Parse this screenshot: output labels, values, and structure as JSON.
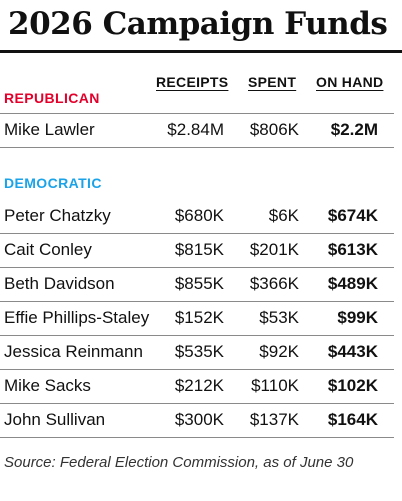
{
  "title": "2026 Campaign Funds",
  "columns": {
    "receipts": "RECEIPTS",
    "spent": "SPENT",
    "on_hand": "ON HAND"
  },
  "colors": {
    "republican": "#e4002b",
    "democratic": "#1aa3e8"
  },
  "republican": {
    "label": "REPUBLICAN",
    "rows": [
      {
        "name": "Mike Lawler",
        "receipts": "$2.84M",
        "spent": "$806K",
        "on_hand": "$2.2M"
      }
    ]
  },
  "democratic": {
    "label": "DEMOCRATIC",
    "rows": [
      {
        "name": "Peter Chatzky",
        "receipts": "$680K",
        "spent": "$6K",
        "on_hand": "$674K"
      },
      {
        "name": "Cait Conley",
        "receipts": "$815K",
        "spent": "$201K",
        "on_hand": "$613K"
      },
      {
        "name": "Beth Davidson",
        "receipts": "$855K",
        "spent": "$366K",
        "on_hand": "$489K"
      },
      {
        "name": "Effie Phillips-Staley",
        "receipts": "$152K",
        "spent": "$53K",
        "on_hand": "$99K"
      },
      {
        "name": "Jessica Reinmann",
        "receipts": "$535K",
        "spent": "$92K",
        "on_hand": "$443K"
      },
      {
        "name": "Mike Sacks",
        "receipts": "$212K",
        "spent": "$110K",
        "on_hand": "$102K"
      },
      {
        "name": "John Sullivan",
        "receipts": "$300K",
        "spent": "$137K",
        "on_hand": "$164K"
      }
    ]
  },
  "source": "Source: Federal Election Commission, as of June 30"
}
